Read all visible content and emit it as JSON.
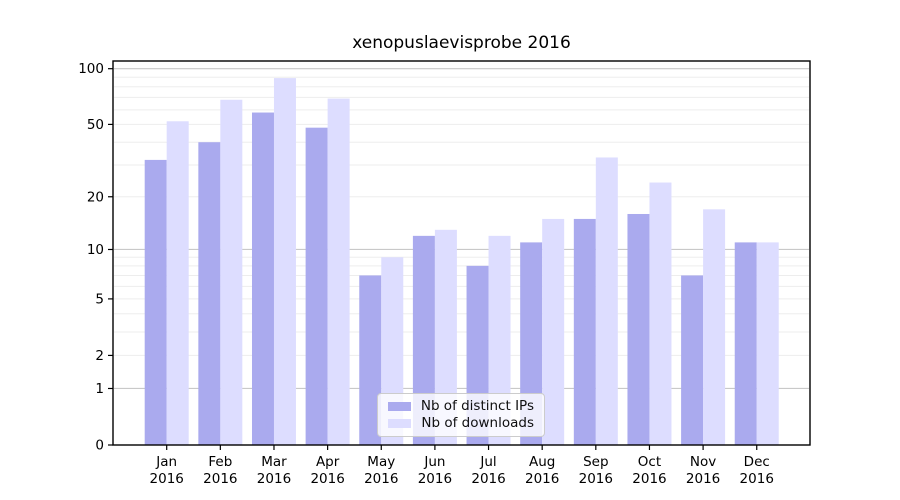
{
  "chart_data": {
    "type": "bar",
    "title": "xenopuslaevisprobe 2016",
    "categories": [
      "Jan",
      "Feb",
      "Mar",
      "Apr",
      "May",
      "Jun",
      "Jul",
      "Aug",
      "Sep",
      "Oct",
      "Nov",
      "Dec"
    ],
    "x_year_label": "2016",
    "series": [
      {
        "name": "Nb of distinct IPs",
        "color": "#aaaaee",
        "values": [
          32,
          40,
          58,
          48,
          7,
          12,
          8,
          11,
          15,
          16,
          7,
          11
        ]
      },
      {
        "name": "Nb of downloads",
        "color": "#ddddff",
        "values": [
          52,
          68,
          89,
          69,
          9,
          13,
          12,
          15,
          33,
          24,
          17,
          11
        ]
      }
    ],
    "xlabel": "",
    "ylabel": "",
    "yscale": "log10(value+1)",
    "ylim": [
      0,
      110
    ],
    "yticks": [
      0,
      1,
      2,
      5,
      10,
      20,
      50,
      100
    ],
    "major_gridlines": [
      1,
      10,
      100
    ],
    "minor_gridlines": [
      2,
      3,
      4,
      5,
      6,
      7,
      8,
      9,
      20,
      30,
      40,
      50,
      60,
      70,
      80,
      90
    ],
    "grid": true,
    "legend_position": "bottom-center",
    "colors": {
      "axis": "#000000",
      "tick_label": "#000000",
      "gridline_major": "#c9c9c9",
      "gridline_minor": "#ededed",
      "background": "#ffffff"
    }
  }
}
